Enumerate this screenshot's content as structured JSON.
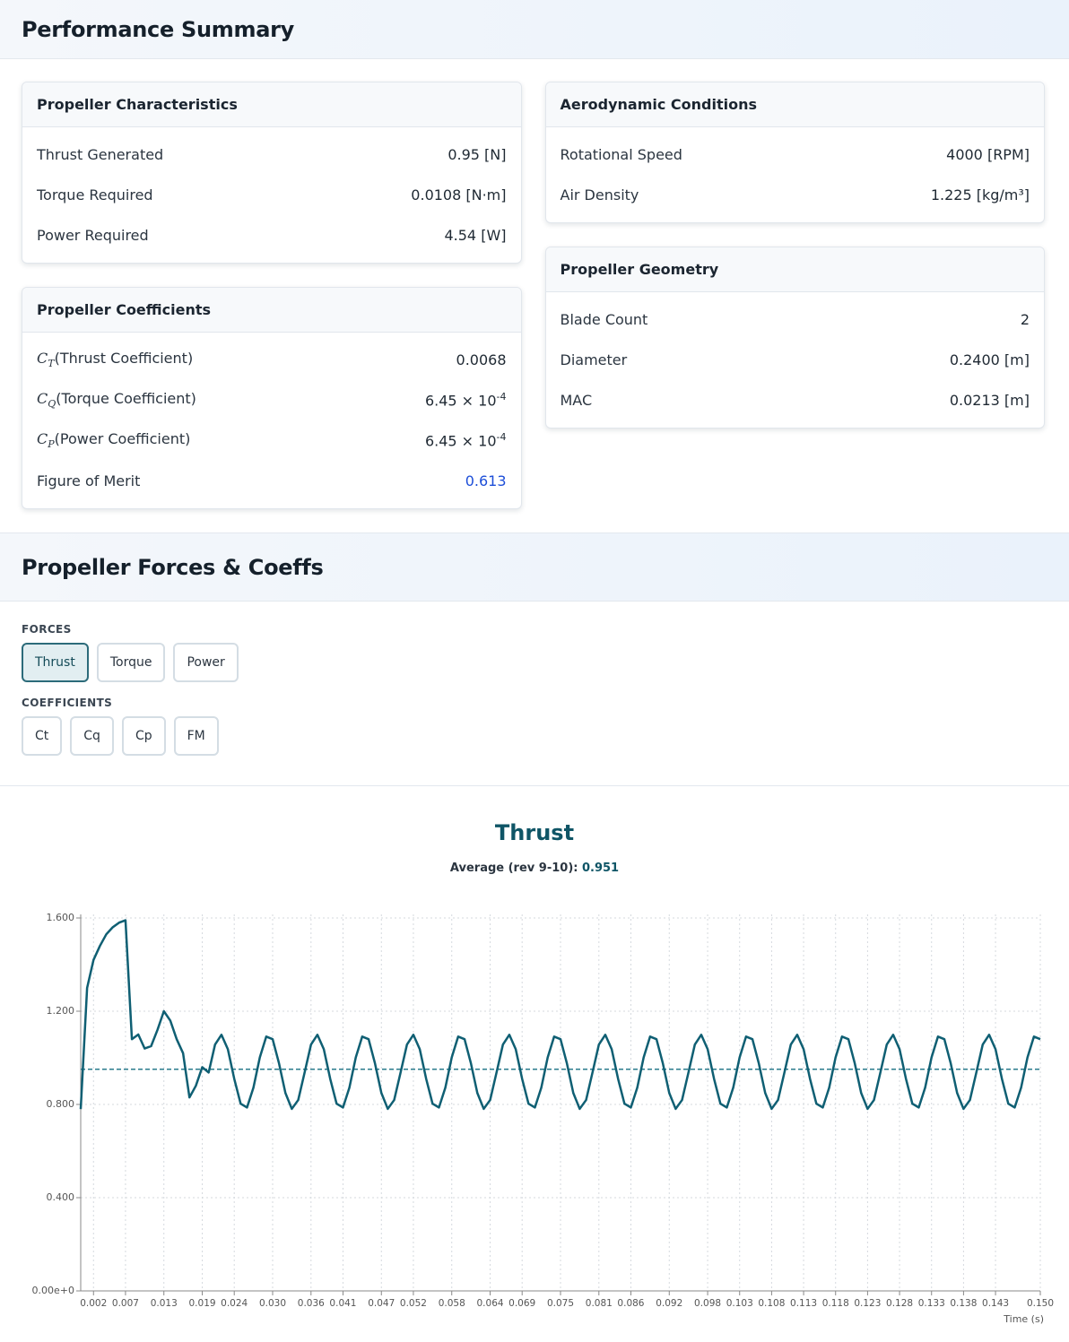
{
  "performance_summary": {
    "title": "Performance Summary",
    "columns": [
      [
        {
          "title": "Propeller Characteristics",
          "rows": [
            {
              "label": "Thrust Generated",
              "value": "0.95 [N]"
            },
            {
              "label": "Torque Required",
              "value": "0.0108 [N·m]"
            },
            {
              "label": "Power Required",
              "value": "4.54 [W]"
            }
          ]
        },
        {
          "title": "Propeller Coefficients",
          "rows": [
            {
              "symbol": "C",
              "subscript": "T",
              "label": "(Thrust Coefficient)",
              "value": "0.0068"
            },
            {
              "symbol": "C",
              "subscript": "Q",
              "label": "(Torque Coefficient)",
              "value": "6.45 × 10",
              "exponent": "-4"
            },
            {
              "symbol": "C",
              "subscript": "P",
              "label": "(Power Coefficient)",
              "value": "6.45 × 10",
              "exponent": "-4"
            },
            {
              "label": "Figure of Merit",
              "value": "0.613",
              "value_color": "#1d4ed8"
            }
          ]
        }
      ],
      [
        {
          "title": "Aerodynamic Conditions",
          "rows": [
            {
              "label": "Rotational Speed",
              "value": "4000 [RPM]"
            },
            {
              "label": "Air Density",
              "value": "1.225 [kg/m³]"
            }
          ]
        },
        {
          "title": "Propeller Geometry",
          "rows": [
            {
              "label": "Blade Count",
              "value": "2"
            },
            {
              "label": "Diameter",
              "value": "0.2400 [m]"
            },
            {
              "label": "MAC",
              "value": "0.0213 [m]"
            }
          ]
        }
      ]
    ]
  },
  "forces_coeffs": {
    "title": "Propeller Forces & Coeffs",
    "groups": [
      {
        "label": "FORCES",
        "buttons": [
          "Thrust",
          "Torque",
          "Power"
        ],
        "active": 0
      },
      {
        "label": "COEFFICIENTS",
        "buttons": [
          "Ct",
          "Cq",
          "Cp",
          "FM"
        ]
      }
    ]
  },
  "chart_data": {
    "type": "line",
    "title": "Thrust",
    "average_label": "Average (rev 9-10):",
    "average": 0.951,
    "x_label": "Time (s)",
    "color": "#0f5f73",
    "average_color": "#2a7b8c",
    "grid": true,
    "xlim": [
      0,
      0.15
    ],
    "ylim": [
      0,
      1.6
    ],
    "xticks": [
      0.002,
      0.007,
      0.013,
      0.019,
      0.024,
      {
        "value": 0.03,
        "label": "0.030"
      },
      0.036,
      0.041,
      0.047,
      0.052,
      0.058,
      0.064,
      0.069,
      0.075,
      0.081,
      0.086,
      0.092,
      0.098,
      0.103,
      0.108,
      0.113,
      0.118,
      0.123,
      0.128,
      0.133,
      0.138,
      0.143,
      {
        "value": 0.15,
        "label": "0.150"
      }
    ],
    "yticks": [
      {
        "value": 0,
        "label": "0.00e+0"
      },
      {
        "value": 0.4,
        "label": "0.400"
      },
      {
        "value": 0.8,
        "label": "0.800"
      },
      {
        "value": 1.2,
        "label": "1.200"
      },
      {
        "value": 1.6,
        "label": "1.600"
      }
    ],
    "x": [
      0,
      0.001,
      0.002,
      0.003,
      0.004,
      0.005,
      0.006,
      0.007,
      0.008,
      0.009,
      0.01,
      0.011,
      0.012,
      0.013,
      0.014,
      0.015,
      0.016,
      0.017,
      0.018,
      0.019,
      0.02,
      0.021,
      0.022,
      0.023,
      0.024,
      0.025,
      0.026,
      0.027,
      0.028,
      0.029,
      0.03,
      0.031,
      0.032,
      0.033,
      0.034,
      0.035,
      0.036,
      0.037,
      0.038,
      0.039,
      0.04,
      0.041,
      0.042,
      0.043,
      0.044,
      0.045,
      0.046,
      0.047,
      0.048,
      0.049,
      0.05,
      0.051,
      0.052,
      0.053,
      0.054,
      0.055,
      0.056,
      0.057,
      0.058,
      0.059,
      0.06,
      0.061,
      0.062,
      0.063,
      0.064,
      0.065,
      0.066,
      0.067,
      0.068,
      0.069,
      0.07,
      0.071,
      0.072,
      0.073,
      0.074,
      0.075,
      0.076,
      0.077,
      0.078,
      0.079,
      0.08,
      0.081,
      0.082,
      0.083,
      0.084,
      0.085,
      0.086,
      0.087,
      0.088,
      0.089,
      0.09,
      0.091,
      0.092,
      0.093,
      0.094,
      0.095,
      0.096,
      0.097,
      0.098,
      0.099,
      0.1,
      0.101,
      0.102,
      0.103,
      0.104,
      0.105,
      0.106,
      0.107,
      0.108,
      0.109,
      0.11,
      0.111,
      0.112,
      0.113,
      0.114,
      0.115,
      0.116,
      0.117,
      0.118,
      0.119,
      0.12,
      0.121,
      0.122,
      0.123,
      0.124,
      0.125,
      0.126,
      0.127,
      0.128,
      0.129,
      0.13,
      0.131,
      0.132,
      0.133,
      0.134,
      0.135,
      0.136,
      0.137,
      0.138,
      0.139,
      0.14,
      0.141,
      0.142,
      0.143,
      0.144,
      0.145,
      0.146,
      0.147,
      0.148,
      0.149,
      0.15
    ],
    "values": [
      0.78,
      1.3,
      1.42,
      1.48,
      1.53,
      1.56,
      1.58,
      1.59,
      1.08,
      1.1,
      1.04,
      1.05,
      1.12,
      1.2,
      1.16,
      1.08,
      1.02,
      0.83,
      0.88,
      0.96,
      0.937,
      1.057,
      1.099,
      1.037,
      0.91,
      0.803,
      0.787,
      0.872,
      1.002,
      1.091,
      1.08,
      0.976,
      0.849,
      0.781,
      0.819,
      0.937,
      1.057,
      1.099,
      1.037,
      0.91,
      0.803,
      0.787,
      0.872,
      1.002,
      1.091,
      1.08,
      0.976,
      0.849,
      0.781,
      0.819,
      0.937,
      1.057,
      1.099,
      1.037,
      0.91,
      0.803,
      0.787,
      0.872,
      1.002,
      1.091,
      1.08,
      0.976,
      0.849,
      0.781,
      0.819,
      0.937,
      1.057,
      1.099,
      1.037,
      0.91,
      0.803,
      0.787,
      0.872,
      1.002,
      1.091,
      1.08,
      0.976,
      0.849,
      0.781,
      0.819,
      0.937,
      1.057,
      1.099,
      1.037,
      0.91,
      0.803,
      0.787,
      0.872,
      1.002,
      1.091,
      1.08,
      0.976,
      0.849,
      0.781,
      0.819,
      0.937,
      1.057,
      1.099,
      1.037,
      0.91,
      0.803,
      0.787,
      0.872,
      1.002,
      1.091,
      1.08,
      0.976,
      0.849,
      0.781,
      0.819,
      0.937,
      1.057,
      1.099,
      1.037,
      0.91,
      0.803,
      0.787,
      0.872,
      1.002,
      1.091,
      1.08,
      0.976,
      0.849,
      0.781,
      0.819,
      0.937,
      1.057,
      1.099,
      1.037,
      0.91,
      0.803,
      0.787,
      0.872,
      1.002,
      1.091,
      1.08,
      0.976,
      0.849,
      0.781,
      0.819,
      0.937,
      1.057,
      1.099,
      1.037,
      0.91,
      0.803,
      0.787,
      0.872,
      1.002,
      1.091,
      1.08
    ]
  }
}
